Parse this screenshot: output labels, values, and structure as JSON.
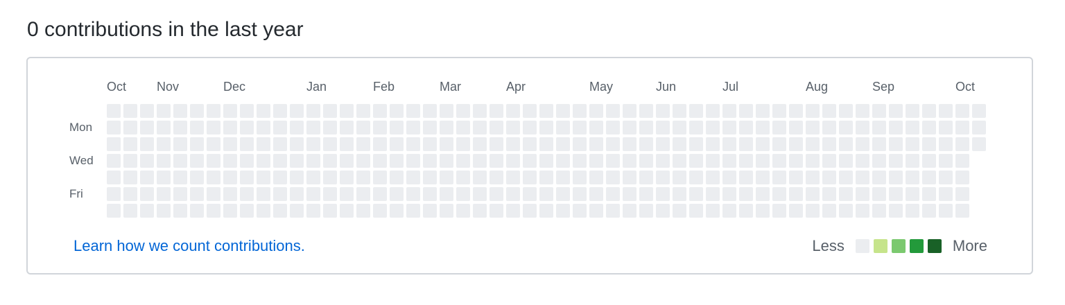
{
  "header": {
    "title": "0 contributions in the last year"
  },
  "graph": {
    "months": [
      "Oct",
      "Nov",
      "Dec",
      "Jan",
      "Feb",
      "Mar",
      "Apr",
      "May",
      "Jun",
      "Jul",
      "Aug",
      "Sep",
      "Oct"
    ],
    "month_start_weeks": [
      0,
      3,
      7,
      12,
      16,
      20,
      24,
      29,
      33,
      37,
      42,
      46,
      51
    ],
    "days": [
      "Mon",
      "Wed",
      "Fri"
    ],
    "day_rows": [
      1,
      3,
      5
    ],
    "weeks": 53,
    "days_per_week": 7,
    "last_week_days": 3,
    "contribution_counts": "all 0",
    "empty_color": "#ebedf0"
  },
  "footer": {
    "learn_link": "Learn how we count contributions.",
    "legend_less": "Less",
    "legend_more": "More",
    "legend_colors": [
      "#ebedf0",
      "#c6e48b",
      "#7bc96f",
      "#239a3b",
      "#196127"
    ]
  }
}
